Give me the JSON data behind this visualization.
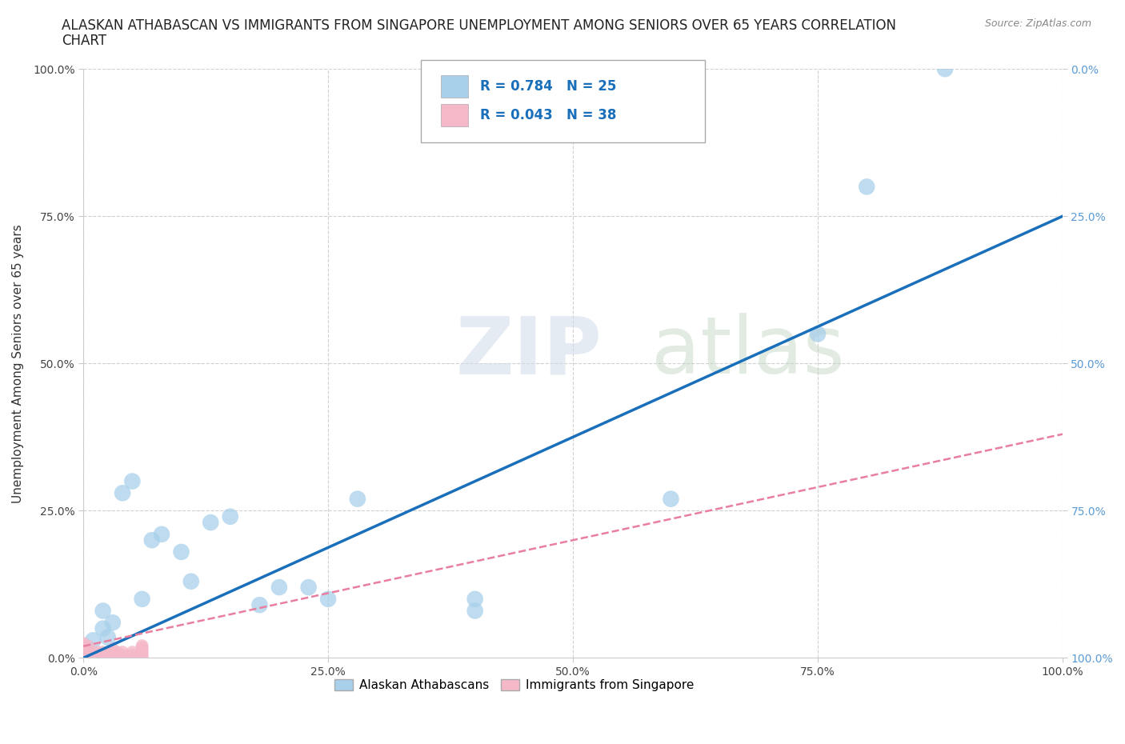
{
  "title_line1": "ALASKAN ATHABASCAN VS IMMIGRANTS FROM SINGAPORE UNEMPLOYMENT AMONG SENIORS OVER 65 YEARS CORRELATION",
  "title_line2": "CHART",
  "source": "Source: ZipAtlas.com",
  "ylabel": "Unemployment Among Seniors over 65 years",
  "xlim": [
    0,
    1.0
  ],
  "ylim": [
    0,
    1.0
  ],
  "xtick_labels": [
    "0.0%",
    "25.0%",
    "50.0%",
    "75.0%",
    "100.0%"
  ],
  "xtick_positions": [
    0.0,
    0.25,
    0.5,
    0.75,
    1.0
  ],
  "ytick_labels": [
    "0.0%",
    "25.0%",
    "50.0%",
    "75.0%",
    "100.0%"
  ],
  "ytick_positions": [
    0.0,
    0.25,
    0.5,
    0.75,
    1.0
  ],
  "right_ytick_labels": [
    "100.0%",
    "75.0%",
    "50.0%",
    "25.0%",
    "0.0%"
  ],
  "watermark_zip": "ZIP",
  "watermark_atlas": "atlas",
  "legend_R1": "R = 0.784",
  "legend_N1": "N = 25",
  "legend_R2": "R = 0.043",
  "legend_N2": "N = 38",
  "color_blue": "#a8d0ea",
  "color_pink": "#f4b8c8",
  "line_blue": "#1a6fba",
  "line_pink": "#e87fa0",
  "blue_line_x0": 0.0,
  "blue_line_y0": 0.0,
  "blue_line_x1": 1.0,
  "blue_line_y1": 0.75,
  "pink_line_x0": 0.0,
  "pink_line_y0": 0.02,
  "pink_line_x1": 1.0,
  "pink_line_y1": 0.38,
  "scatter_blue_x": [
    0.01,
    0.02,
    0.025,
    0.03,
    0.04,
    0.05,
    0.06,
    0.07,
    0.08,
    0.1,
    0.11,
    0.13,
    0.15,
    0.18,
    0.2,
    0.23,
    0.25,
    0.28,
    0.4,
    0.4,
    0.6,
    0.75,
    0.8,
    0.88,
    0.02
  ],
  "scatter_blue_y": [
    0.03,
    0.05,
    0.035,
    0.06,
    0.28,
    0.3,
    0.1,
    0.2,
    0.21,
    0.18,
    0.13,
    0.23,
    0.24,
    0.09,
    0.12,
    0.12,
    0.1,
    0.27,
    0.1,
    0.08,
    0.27,
    0.55,
    0.8,
    1.0,
    0.08
  ],
  "scatter_pink_x": [
    0.0,
    0.0,
    0.0,
    0.0,
    0.0,
    0.0,
    0.005,
    0.005,
    0.005,
    0.01,
    0.01,
    0.015,
    0.015,
    0.02,
    0.02,
    0.025,
    0.025,
    0.025,
    0.03,
    0.03,
    0.03,
    0.03,
    0.035,
    0.035,
    0.04,
    0.04,
    0.04,
    0.05,
    0.05,
    0.05,
    0.06,
    0.06,
    0.06,
    0.06,
    0.06,
    0.06,
    0.06,
    0.06
  ],
  "scatter_pink_y": [
    0.0,
    0.005,
    0.01,
    0.015,
    0.02,
    0.025,
    0.0,
    0.01,
    0.02,
    0.0,
    0.01,
    0.0,
    0.01,
    0.0,
    0.01,
    0.0,
    0.005,
    0.01,
    0.0,
    0.005,
    0.01,
    0.015,
    0.0,
    0.01,
    0.0,
    0.005,
    0.01,
    0.0,
    0.005,
    0.01,
    0.0,
    0.003,
    0.006,
    0.009,
    0.012,
    0.015,
    0.018,
    0.021
  ],
  "background_color": "#ffffff",
  "grid_color": "#cccccc",
  "title_fontsize": 12,
  "label_fontsize": 11,
  "tick_fontsize": 10,
  "right_tick_color": "#5b9bd5",
  "legend_label1": "Alaskan Athabascans",
  "legend_label2": "Immigrants from Singapore"
}
